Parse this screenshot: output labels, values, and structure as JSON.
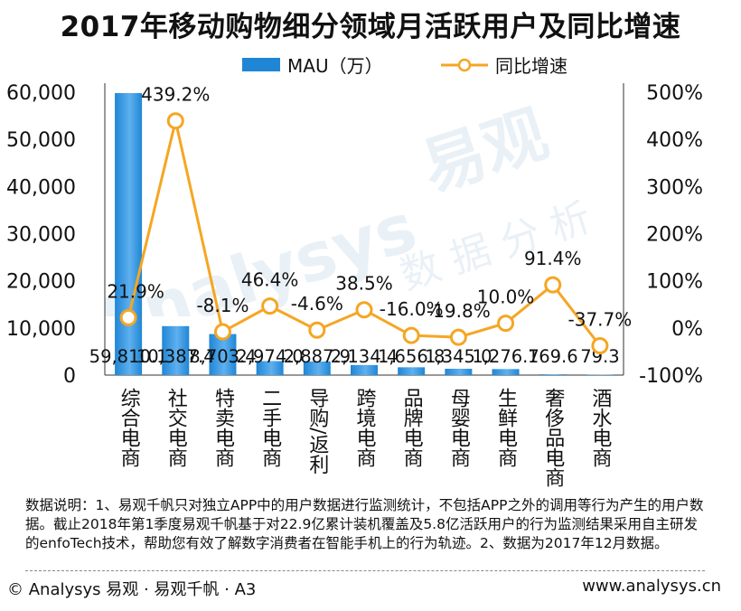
{
  "title": "2017年移动购物细分领域月活跃用户及同比增速",
  "watermark": {
    "brand_en": "Analysys",
    "brand_cn": "易观",
    "subtitle": "数 据 分 析"
  },
  "colors": {
    "bar": "#1f86d6",
    "bar_light": "#5fb0ee",
    "line": "#f5a623",
    "axis": "#333333"
  },
  "chart_data": {
    "type": "bar",
    "categories": [
      "综合电商",
      "社交电商",
      "特卖电商",
      "二手电商",
      "导购/返利",
      "跨境电商",
      "品牌电商",
      "母婴电商",
      "生鲜电商",
      "奢侈品电商",
      "酒水电商"
    ],
    "series": [
      {
        "name": "MAU（万）",
        "type": "bar",
        "axis": "left",
        "values": [
          59810.1,
          10387.4,
          8703.4,
          2974.0,
          2887.9,
          2134.4,
          1656.8,
          1345.0,
          1276.7,
          169.6,
          79.3
        ],
        "labels": [
          "59,810.1",
          "10,387.4",
          "8,703.4",
          "2,974.0",
          "2,887.9",
          "2,134.4",
          "1,656.8",
          "1,345.0",
          "1,276.7",
          "169.6",
          "79.3"
        ]
      },
      {
        "name": "同比增速",
        "type": "line",
        "axis": "right",
        "values": [
          21.9,
          439.2,
          -8.1,
          46.4,
          -4.6,
          38.5,
          -16.0,
          -19.8,
          10.0,
          91.4,
          -37.7
        ],
        "labels": [
          "21.9%",
          "439.2%",
          "-8.1%",
          "46.4%",
          "-4.6%",
          "38.5%",
          "-16.0%",
          "-19.8%",
          "10.0%",
          "91.4%",
          "-37.7%"
        ]
      }
    ],
    "ylim_left": [
      0,
      60000
    ],
    "yticks_left": [
      "0",
      "10,000",
      "20,000",
      "30,000",
      "40,000",
      "50,000",
      "60,000"
    ],
    "ylim_right": [
      -100,
      500
    ],
    "yticks_right": [
      "-100%",
      "0%",
      "100%",
      "200%",
      "300%",
      "400%",
      "500%"
    ],
    "legend": [
      "MAU（万）",
      "同比增速"
    ],
    "legend_position": "top-center"
  },
  "note": "数据说明：1、易观千帆只对独立APP中的用户数据进行监测统计，不包括APP之外的调用等行为产生的用户数据。截止2018年第1季度易观千帆基于对22.9亿累计装机覆盖及5.8亿活跃用户的行为监测结果采用自主研发的enfoTech技术，帮助您有效了解数字消费者在智能手机上的行为轨迹。2、数据为2017年12月数据。",
  "footer": {
    "left": "© Analysys 易观 · 易观千帆 · A3",
    "right": "www.analysys.cn"
  }
}
